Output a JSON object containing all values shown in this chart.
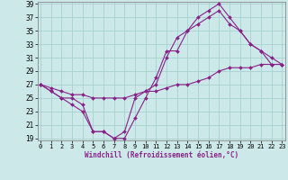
{
  "xlabel": "Windchill (Refroidissement éolien,°C)",
  "bg_color": "#cde8e8",
  "grid_color": "#aad4d4",
  "line_color": "#882288",
  "xlim": [
    0,
    23
  ],
  "ylim": [
    19,
    39
  ],
  "xticks": [
    0,
    1,
    2,
    3,
    4,
    5,
    6,
    7,
    8,
    9,
    10,
    11,
    12,
    13,
    14,
    15,
    16,
    17,
    18,
    19,
    20,
    21,
    22,
    23
  ],
  "yticks": [
    19,
    21,
    23,
    25,
    27,
    29,
    31,
    33,
    35,
    37,
    39
  ],
  "line1_x": [
    0,
    1,
    2,
    3,
    4,
    5,
    6,
    7,
    8,
    9,
    10,
    11,
    12,
    13,
    14,
    15,
    16,
    17,
    18,
    19,
    20,
    21,
    22,
    23
  ],
  "line1_y": [
    27,
    26,
    25,
    24,
    23,
    20,
    20,
    19,
    19,
    22,
    25,
    28,
    32,
    32,
    35,
    37,
    38,
    39,
    37,
    35,
    33,
    32,
    30,
    30
  ],
  "line2_x": [
    0,
    1,
    2,
    3,
    4,
    5,
    6,
    7,
    8,
    9,
    10,
    11,
    12,
    13,
    14,
    15,
    16,
    17,
    18,
    19,
    20,
    21,
    22,
    23
  ],
  "line2_y": [
    27,
    26,
    25,
    25,
    24,
    20,
    20,
    19,
    20,
    25,
    26,
    27,
    31,
    34,
    35,
    36,
    37,
    38,
    36,
    35,
    33,
    32,
    31,
    30
  ],
  "line3_x": [
    0,
    1,
    2,
    3,
    4,
    5,
    6,
    7,
    8,
    9,
    10,
    11,
    12,
    13,
    14,
    15,
    16,
    17,
    18,
    19,
    20,
    21,
    22,
    23
  ],
  "line3_y": [
    27,
    26.5,
    26,
    25.5,
    25.5,
    25,
    25,
    25,
    25,
    25.5,
    26,
    26,
    26.5,
    27,
    27,
    27.5,
    28,
    29,
    29.5,
    29.5,
    29.5,
    30,
    30,
    30
  ]
}
